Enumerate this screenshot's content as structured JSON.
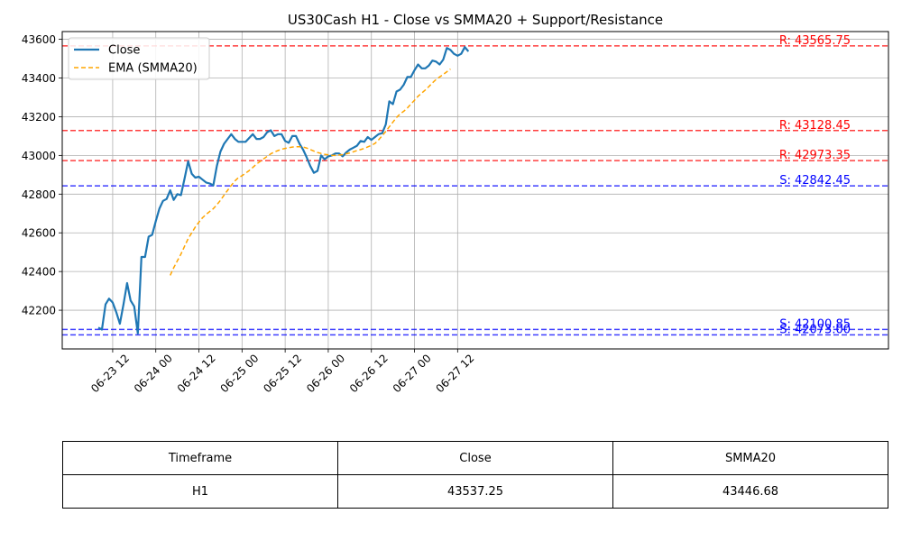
{
  "chart_data": {
    "type": "line",
    "title": "US30Cash H1 - Close vs SMMA20 + Support/Resistance",
    "xlabel": "",
    "ylabel": "",
    "x_tick_labels": [
      "06-23 12",
      "06-24 00",
      "06-24 12",
      "06-25 00",
      "06-25 12",
      "06-26 00",
      "06-26 12",
      "06-27 00",
      "06-27 12"
    ],
    "y_ticks": [
      42200,
      42400,
      42600,
      42800,
      43000,
      43200,
      43400,
      43600
    ],
    "ylim": [
      42000,
      43640
    ],
    "grid": true,
    "legend_position": "top-left",
    "series": [
      {
        "name": "Close",
        "color": "#1f77b4",
        "style": "solid",
        "start": "06-23 08",
        "interval_hours": 1,
        "values": [
          42110,
          42100,
          42230,
          42260,
          42240,
          42190,
          42130,
          42230,
          42340,
          42250,
          42220,
          42080,
          42475,
          42475,
          42580,
          42590,
          42660,
          42725,
          42765,
          42775,
          42820,
          42770,
          42800,
          42795,
          42880,
          42970,
          42905,
          42885,
          42890,
          42875,
          42860,
          42855,
          42845,
          42945,
          43020,
          43060,
          43085,
          43110,
          43085,
          43070,
          43070,
          43070,
          43090,
          43110,
          43085,
          43085,
          43095,
          43120,
          43130,
          43100,
          43110,
          43110,
          43075,
          43065,
          43100,
          43100,
          43060,
          43030,
          42990,
          42945,
          42910,
          42920,
          43000,
          42980,
          42995,
          43000,
          43010,
          43010,
          42995,
          43015,
          43030,
          43040,
          43050,
          43075,
          43070,
          43095,
          43080,
          43095,
          43110,
          43115,
          43160,
          43280,
          43265,
          43330,
          43340,
          43365,
          43405,
          43405,
          43440,
          43470,
          43450,
          43450,
          43465,
          43490,
          43485,
          43470,
          43495,
          43555,
          43545,
          43525,
          43515,
          43525,
          43560,
          43537.25
        ]
      },
      {
        "name": "EMA (SMMA20)",
        "color": "#ffa500",
        "style": "dashed",
        "start": "06-24 04",
        "interval_hours": 1,
        "values": [
          42380,
          42420,
          42455,
          42490,
          42530,
          42570,
          42600,
          42630,
          42655,
          42678,
          42695,
          42710,
          42725,
          42745,
          42768,
          42795,
          42820,
          42845,
          42868,
          42885,
          42895,
          42908,
          42922,
          42938,
          42955,
          42968,
          42982,
          42995,
          43008,
          43018,
          43025,
          43032,
          43036,
          43040,
          43043,
          43045,
          43045,
          43043,
          43038,
          43030,
          43022,
          43015,
          43010,
          43006,
          43003,
          43000,
          43000,
          43002,
          43004,
          43008,
          43013,
          43019,
          43025,
          43030,
          43036,
          43044,
          43052,
          43062,
          43080,
          43102,
          43124,
          43148,
          43172,
          43196,
          43214,
          43228,
          43245,
          43265,
          43285,
          43306,
          43322,
          43338,
          43356,
          43375,
          43392,
          43405,
          43418,
          43432,
          43446.68
        ]
      }
    ],
    "levels": [
      {
        "kind": "resistance",
        "label": "R: 43565.75",
        "value": 43565.75,
        "color": "#ff0000"
      },
      {
        "kind": "resistance",
        "label": "R: 43128.45",
        "value": 43128.45,
        "color": "#ff0000"
      },
      {
        "kind": "resistance",
        "label": "R: 42973.35",
        "value": 42973.35,
        "color": "#ff0000"
      },
      {
        "kind": "support",
        "label": "S: 42842.45",
        "value": 42842.45,
        "color": "#0000ff"
      },
      {
        "kind": "support",
        "label": "S: 42100.85",
        "value": 42100.85,
        "color": "#0000ff"
      },
      {
        "kind": "support",
        "label": "S: 42073.00",
        "value": 42073.0,
        "color": "#0000ff"
      }
    ]
  },
  "table": {
    "headers": [
      "Timeframe",
      "Close",
      "SMMA20"
    ],
    "row": [
      "H1",
      "43537.25",
      "43446.68"
    ]
  }
}
